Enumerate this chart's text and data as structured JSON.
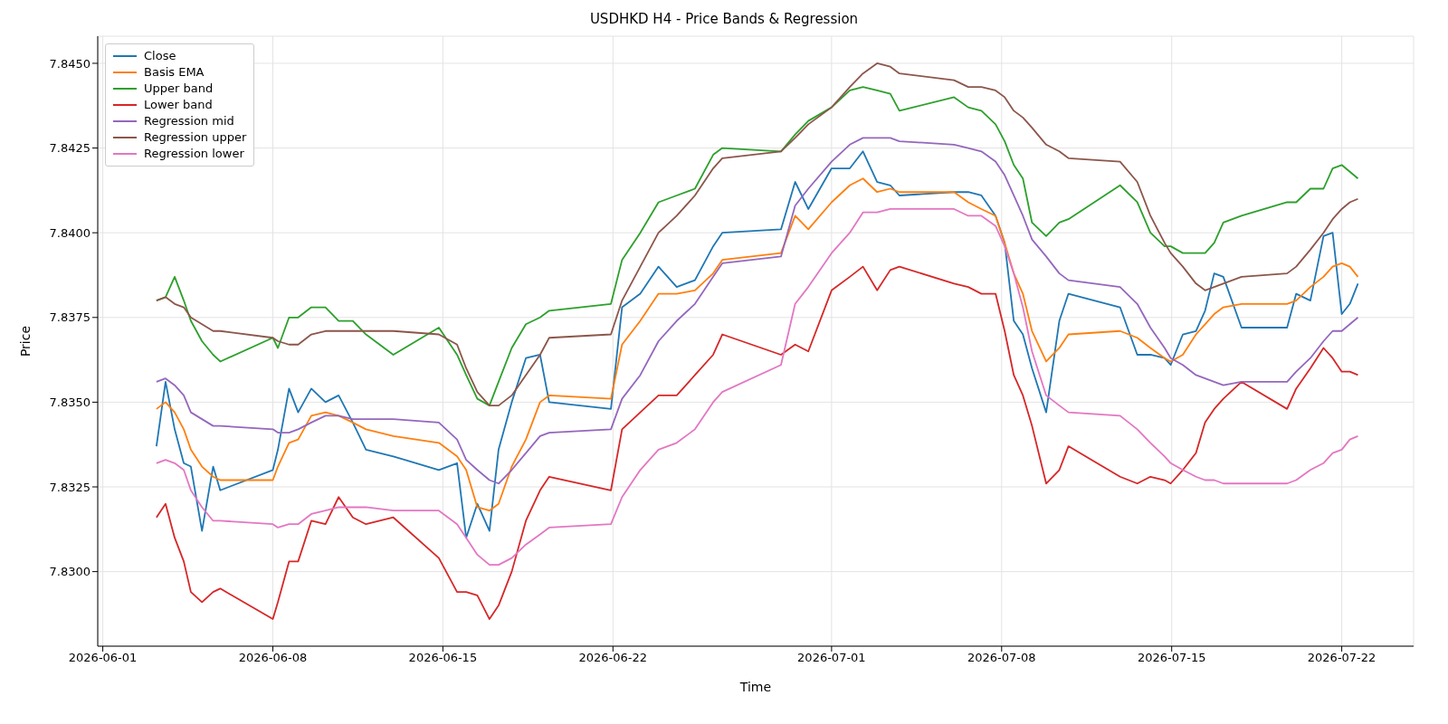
{
  "chart_data": {
    "type": "line",
    "title": "USDHKD H4 - Price Bands & Regression",
    "xlabel": "Time",
    "ylabel": "Price",
    "x": [
      "2026-06-03T05:00",
      "2026-06-03T14:00",
      "2026-06-03T23:00",
      "2026-06-04T08:00",
      "2026-06-04T15:00",
      "2026-06-05T02:00",
      "2026-06-05T13:00",
      "2026-06-05T20:00",
      "2026-06-08T00:00",
      "2026-06-08T05:00",
      "2026-06-08T16:00",
      "2026-06-09T01:00",
      "2026-06-09T14:00",
      "2026-06-10T04:00",
      "2026-06-10T17:00",
      "2026-06-11T07:00",
      "2026-06-11T20:00",
      "2026-06-12T23:00",
      "2026-06-14T20:00",
      "2026-06-15T14:00",
      "2026-06-15T23:00",
      "2026-06-16T10:00",
      "2026-06-16T22:00",
      "2026-06-17T07:00",
      "2026-06-17T20:00",
      "2026-06-18T10:00",
      "2026-06-19T00:00",
      "2026-06-19T09:00",
      "2026-06-21T22:00",
      "2026-06-22T09:00",
      "2026-06-23T03:00",
      "2026-06-23T21:00",
      "2026-06-24T15:00",
      "2026-06-25T09:00",
      "2026-06-26T03:00",
      "2026-06-26T12:00",
      "2026-06-28T22:00",
      "2026-06-29T12:00",
      "2026-06-30T01:00",
      "2026-07-01T00:00",
      "2026-07-01T18:00",
      "2026-07-02T07:00",
      "2026-07-02T21:00",
      "2026-07-03T10:00",
      "2026-07-03T19:00",
      "2026-07-06T01:00",
      "2026-07-06T15:00",
      "2026-07-07T04:00",
      "2026-07-07T18:00",
      "2026-07-08T03:00",
      "2026-07-08T12:00",
      "2026-07-08T21:00",
      "2026-07-09T06:00",
      "2026-07-09T20:00",
      "2026-07-10T09:00",
      "2026-07-10T18:00",
      "2026-07-12T21:00",
      "2026-07-13T14:00",
      "2026-07-14T03:00",
      "2026-07-14T17:00",
      "2026-07-14T23:00",
      "2026-07-15T11:00",
      "2026-07-16T00:00",
      "2026-07-16T09:00",
      "2026-07-16T18:00",
      "2026-07-17T03:00",
      "2026-07-17T21:00",
      "2026-07-19T18:00",
      "2026-07-20T03:00",
      "2026-07-20T17:00",
      "2026-07-21T06:00",
      "2026-07-21T15:00",
      "2026-07-22T00:00",
      "2026-07-22T08:00",
      "2026-07-22T16:00"
    ],
    "series": [
      {
        "name": "Close",
        "color": "#1f77b4",
        "values": [
          7.8337,
          7.8356,
          7.8342,
          7.8332,
          7.8331,
          7.8312,
          7.8331,
          7.8324,
          7.833,
          7.8336,
          7.8354,
          7.8347,
          7.8354,
          7.835,
          7.8352,
          7.8344,
          7.8336,
          7.8334,
          7.833,
          7.8332,
          7.831,
          7.832,
          7.8312,
          7.8336,
          7.835,
          7.8363,
          7.8364,
          7.835,
          7.8348,
          7.8378,
          7.8382,
          7.839,
          7.8384,
          7.8386,
          7.8396,
          7.84,
          7.8401,
          7.8415,
          7.8407,
          7.8419,
          7.8419,
          7.8424,
          7.8415,
          7.8414,
          7.8411,
          7.8412,
          7.8412,
          7.8411,
          7.8405,
          7.8397,
          7.8374,
          7.837,
          7.836,
          7.8347,
          7.8374,
          7.8382,
          7.8378,
          7.8364,
          7.8364,
          7.8363,
          7.8361,
          7.837,
          7.8371,
          7.8377,
          7.8388,
          7.8387,
          7.8372,
          7.8372,
          7.8382,
          7.838,
          7.8399,
          7.84,
          7.8376,
          7.8379,
          7.8385
        ]
      },
      {
        "name": "Basis EMA",
        "color": "#ff7f0e",
        "values": [
          7.8348,
          7.835,
          7.8347,
          7.8342,
          7.8336,
          7.8331,
          7.8328,
          7.8327,
          7.8327,
          7.8331,
          7.8338,
          7.8339,
          7.8346,
          7.8347,
          7.8346,
          7.8344,
          7.8342,
          7.834,
          7.8338,
          7.8334,
          7.833,
          7.8319,
          7.8318,
          7.832,
          7.8331,
          7.8339,
          7.835,
          7.8352,
          7.8351,
          7.8367,
          7.8374,
          7.8382,
          7.8382,
          7.8383,
          7.8388,
          7.8392,
          7.8394,
          7.8405,
          7.8401,
          7.8409,
          7.8414,
          7.8416,
          7.8412,
          7.8413,
          7.8412,
          7.8412,
          7.8409,
          7.8407,
          7.8405,
          7.8397,
          7.8388,
          7.8382,
          7.8371,
          7.8362,
          7.8366,
          7.837,
          7.8371,
          7.8369,
          7.8366,
          7.8363,
          7.8362,
          7.8364,
          7.837,
          7.8373,
          7.8376,
          7.8378,
          7.8379,
          7.8379,
          7.838,
          7.8384,
          7.8387,
          7.839,
          7.8391,
          7.839,
          7.8387
        ]
      },
      {
        "name": "Upper band",
        "color": "#2ca02c",
        "values": [
          7.838,
          7.8381,
          7.8387,
          7.838,
          7.8374,
          7.8368,
          7.8364,
          7.8362,
          7.8369,
          7.8366,
          7.8375,
          7.8375,
          7.8378,
          7.8378,
          7.8374,
          7.8374,
          7.837,
          7.8364,
          7.8372,
          7.8364,
          7.8358,
          7.8351,
          7.8349,
          7.8356,
          7.8366,
          7.8373,
          7.8375,
          7.8377,
          7.8379,
          7.8392,
          7.84,
          7.8409,
          7.8411,
          7.8413,
          7.8423,
          7.8425,
          7.8424,
          7.8429,
          7.8433,
          7.8437,
          7.8442,
          7.8443,
          7.8442,
          7.8441,
          7.8436,
          7.844,
          7.8437,
          7.8436,
          7.8432,
          7.8427,
          7.842,
          7.8416,
          7.8403,
          7.8399,
          7.8403,
          7.8404,
          7.8414,
          7.8409,
          7.84,
          7.8396,
          7.8396,
          7.8394,
          7.8394,
          7.8394,
          7.8397,
          7.8403,
          7.8405,
          7.8409,
          7.8409,
          7.8413,
          7.8413,
          7.8419,
          7.842,
          7.8418,
          7.8416
        ]
      },
      {
        "name": "Lower band",
        "color": "#d62728",
        "values": [
          7.8316,
          7.832,
          7.831,
          7.8303,
          7.8294,
          7.8291,
          7.8294,
          7.8295,
          7.8286,
          7.8291,
          7.8303,
          7.8303,
          7.8315,
          7.8314,
          7.8322,
          7.8316,
          7.8314,
          7.8316,
          7.8304,
          7.8294,
          7.8294,
          7.8293,
          7.8286,
          7.829,
          7.83,
          7.8315,
          7.8324,
          7.8328,
          7.8324,
          7.8342,
          7.8347,
          7.8352,
          7.8352,
          7.8358,
          7.8364,
          7.837,
          7.8364,
          7.8367,
          7.8365,
          7.8383,
          7.8387,
          7.839,
          7.8383,
          7.8389,
          7.839,
          7.8385,
          7.8384,
          7.8382,
          7.8382,
          7.8371,
          7.8358,
          7.8352,
          7.8343,
          7.8326,
          7.833,
          7.8337,
          7.8328,
          7.8326,
          7.8328,
          7.8327,
          7.8326,
          7.833,
          7.8335,
          7.8344,
          7.8348,
          7.8351,
          7.8356,
          7.8348,
          7.8354,
          7.836,
          7.8366,
          7.8363,
          7.8359,
          7.8359,
          7.8358
        ]
      },
      {
        "name": "Regression mid",
        "color": "#9467bd",
        "values": [
          7.8356,
          7.8357,
          7.8355,
          7.8352,
          7.8347,
          7.8345,
          7.8343,
          7.8343,
          7.8342,
          7.8341,
          7.8341,
          7.8342,
          7.8344,
          7.8346,
          7.8346,
          7.8345,
          7.8345,
          7.8345,
          7.8344,
          7.8339,
          7.8333,
          7.833,
          7.8327,
          7.8326,
          7.833,
          7.8335,
          7.834,
          7.8341,
          7.8342,
          7.8351,
          7.8358,
          7.8368,
          7.8374,
          7.8379,
          7.8387,
          7.8391,
          7.8393,
          7.8408,
          7.8413,
          7.8421,
          7.8426,
          7.8428,
          7.8428,
          7.8428,
          7.8427,
          7.8426,
          7.8425,
          7.8424,
          7.8421,
          7.8417,
          7.8411,
          7.8405,
          7.8398,
          7.8393,
          7.8388,
          7.8386,
          7.8384,
          7.8379,
          7.8372,
          7.8366,
          7.8363,
          7.8361,
          7.8358,
          7.8357,
          7.8356,
          7.8355,
          7.8356,
          7.8356,
          7.8359,
          7.8363,
          7.8368,
          7.8371,
          7.8371,
          7.8373,
          7.8375
        ]
      },
      {
        "name": "Regression upper",
        "color": "#8c564b",
        "values": [
          7.838,
          7.8381,
          7.8379,
          7.8378,
          7.8375,
          7.8373,
          7.8371,
          7.8371,
          7.8369,
          7.8368,
          7.8367,
          7.8367,
          7.837,
          7.8371,
          7.8371,
          7.8371,
          7.8371,
          7.8371,
          7.837,
          7.8367,
          7.836,
          7.8353,
          7.8349,
          7.8349,
          7.8352,
          7.8358,
          7.8364,
          7.8369,
          7.837,
          7.838,
          7.839,
          7.84,
          7.8405,
          7.8411,
          7.8419,
          7.8422,
          7.8424,
          7.8428,
          7.8432,
          7.8437,
          7.8443,
          7.8447,
          7.845,
          7.8449,
          7.8447,
          7.8445,
          7.8443,
          7.8443,
          7.8442,
          7.844,
          7.8436,
          7.8434,
          7.8431,
          7.8426,
          7.8424,
          7.8422,
          7.8421,
          7.8415,
          7.8405,
          7.8397,
          7.8394,
          7.839,
          7.8385,
          7.8383,
          7.8384,
          7.8385,
          7.8387,
          7.8388,
          7.839,
          7.8395,
          7.84,
          7.8404,
          7.8407,
          7.8409,
          7.841
        ]
      },
      {
        "name": "Regression lower",
        "color": "#e377c2",
        "values": [
          7.8332,
          7.8333,
          7.8332,
          7.833,
          7.8324,
          7.8319,
          7.8315,
          7.8315,
          7.8314,
          7.8313,
          7.8314,
          7.8314,
          7.8317,
          7.8318,
          7.8319,
          7.8319,
          7.8319,
          7.8318,
          7.8318,
          7.8314,
          7.831,
          7.8305,
          7.8302,
          7.8302,
          7.8304,
          7.8308,
          7.8311,
          7.8313,
          7.8314,
          7.8322,
          7.833,
          7.8336,
          7.8338,
          7.8342,
          7.835,
          7.8353,
          7.8361,
          7.8379,
          7.8384,
          7.8394,
          7.84,
          7.8406,
          7.8406,
          7.8407,
          7.8407,
          7.8407,
          7.8405,
          7.8405,
          7.8402,
          7.8396,
          7.8388,
          7.8378,
          7.8365,
          7.8352,
          7.8349,
          7.8347,
          7.8346,
          7.8342,
          7.8338,
          7.8334,
          7.8332,
          7.833,
          7.8328,
          7.8327,
          7.8327,
          7.8326,
          7.8326,
          7.8326,
          7.8327,
          7.833,
          7.8332,
          7.8335,
          7.8336,
          7.8339,
          7.834
        ]
      }
    ],
    "xlim": [
      "2026-05-31T19:00",
      "2026-07-24T23:00"
    ],
    "xticks": [
      {
        "value": "2026-06-01",
        "label": "2026-06-01"
      },
      {
        "value": "2026-06-08",
        "label": "2026-06-08"
      },
      {
        "value": "2026-06-15",
        "label": "2026-06-15"
      },
      {
        "value": "2026-06-22",
        "label": "2026-06-22"
      },
      {
        "value": "2026-07-01",
        "label": "2026-07-01"
      },
      {
        "value": "2026-07-08",
        "label": "2026-07-08"
      },
      {
        "value": "2026-07-15",
        "label": "2026-07-15"
      },
      {
        "value": "2026-07-22",
        "label": "2026-07-22"
      }
    ],
    "ylim": [
      7.8278,
      7.8458
    ],
    "yticks": [
      {
        "value": 7.83,
        "label": "7.8300"
      },
      {
        "value": 7.8325,
        "label": "7.8325"
      },
      {
        "value": 7.835,
        "label": "7.8350"
      },
      {
        "value": 7.8375,
        "label": "7.8375"
      },
      {
        "value": 7.84,
        "label": "7.8400"
      },
      {
        "value": 7.8425,
        "label": "7.8425"
      },
      {
        "value": 7.845,
        "label": "7.8450"
      }
    ],
    "grid": true,
    "legend": "top left",
    "marker": "none",
    "line_style": "solid"
  }
}
